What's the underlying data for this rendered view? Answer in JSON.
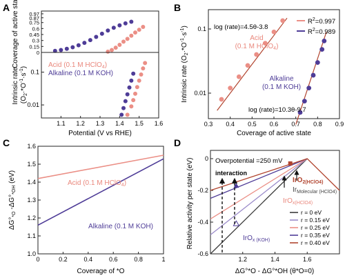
{
  "panel_letters": [
    "A",
    "B",
    "C",
    "D"
  ],
  "colors": {
    "acid": "#eb8f86",
    "alkaline": "#4e3c97",
    "acid_text": "#e9877c",
    "alkaline_text": "#4e3c97",
    "fit_line": "#b1442e",
    "volcano": "#b1442e"
  },
  "chart_data": [
    {
      "id": "A_top",
      "type": "scatter",
      "ylabel": "Coverage of active state",
      "xlim": [
        1.0,
        1.6
      ],
      "ylim": [
        0.0,
        0.97
      ],
      "yticks": [
        0.97,
        0.87,
        0.75,
        0.6,
        0.45,
        0.3,
        0.15,
        0
      ],
      "ytick_labels": [
        "0.97",
        "0.87",
        "0.75",
        "0.6",
        "0.45",
        "0.3",
        "0.15",
        "0"
      ],
      "series": [
        {
          "name": "Acid (0.1 M HClO4)",
          "color": "#eb8f86",
          "x": [
            1.34,
            1.36,
            1.38,
            1.4,
            1.42,
            1.44,
            1.46,
            1.48,
            1.5,
            1.52
          ],
          "y": [
            0.02,
            0.06,
            0.12,
            0.19,
            0.27,
            0.34,
            0.42,
            0.5,
            0.57,
            0.64
          ]
        },
        {
          "name": "Alkaline (0.1 M KOH)",
          "color": "#4e3c97",
          "x": [
            1.07,
            1.1,
            1.13,
            1.16,
            1.19,
            1.22,
            1.25,
            1.28,
            1.31,
            1.34,
            1.37,
            1.4,
            1.43,
            1.46
          ],
          "y": [
            0.04,
            0.06,
            0.09,
            0.13,
            0.18,
            0.24,
            0.31,
            0.39,
            0.47,
            0.55,
            0.62,
            0.68,
            0.73,
            0.77
          ]
        }
      ]
    },
    {
      "id": "A_bottom",
      "type": "scatter",
      "xlabel": "Potential (V vs RHE)",
      "ylabel": "Intrinsic rate (O2·*O-1·s-1)",
      "ylabel_main": "Intrinsic rate",
      "ylabel_units": "(O",
      "ylabel_sub": "2",
      "ylabel_sep": "·*O",
      "ylabel_sup1": "-1",
      "ylabel_s": "·s",
      "ylabel_sup2": "-1",
      "ylabel_close": ")",
      "xlim": [
        1.0,
        1.6
      ],
      "ylim_log": [
        0.004,
        0.4
      ],
      "yticks": [
        0.1,
        0.01
      ],
      "ytick_labels": [
        "0.1",
        "0.01"
      ],
      "xticks": [
        1.1,
        1.2,
        1.3,
        1.4,
        1.5,
        1.6
      ],
      "xtick_labels": [
        "1.1",
        "1.2",
        "1.3",
        "1.4",
        "1.5",
        "1.6"
      ],
      "legend": [
        {
          "label": "Acid (0.1 M HClO",
          "sub": "4",
          "close": ")",
          "color": "#e9877c"
        },
        {
          "label": "Alkaline (0.1 M KOH)",
          "color": "#4e3c97"
        }
      ],
      "series": [
        {
          "name": "Acid (0.1 M HClO4)",
          "color": "#eb8f86",
          "x": [
            1.44,
            1.46,
            1.47,
            1.48,
            1.49,
            1.5,
            1.51,
            1.52,
            1.53
          ],
          "y": [
            0.005,
            0.009,
            0.014,
            0.022,
            0.035,
            0.055,
            0.085,
            0.13,
            0.19
          ]
        },
        {
          "name": "Alkaline (0.1 M KOH)",
          "color": "#4e3c97",
          "x": [
            1.41,
            1.42,
            1.43,
            1.44,
            1.45,
            1.46,
            1.47
          ],
          "y": [
            0.005,
            0.008,
            0.013,
            0.021,
            0.034,
            0.055,
            0.09
          ]
        }
      ]
    },
    {
      "id": "B",
      "type": "scatter",
      "xlabel": "Coverage of active state",
      "ylabel": "Intrinsic rate (O2·*O-1·s-1)",
      "ylabel_main": "Intrinsic rate",
      "ylabel_units": "(O",
      "ylabel_sub": "2",
      "ylabel_sep": "·*O",
      "ylabel_sup1": "-1",
      "ylabel_s": "·s",
      "ylabel_sup2": "-1",
      "ylabel_close": ")",
      "xlim": [
        0.3,
        0.9
      ],
      "ylim_log": [
        0.004,
        0.2
      ],
      "xticks": [
        0.3,
        0.4,
        0.5,
        0.6,
        0.7,
        0.8,
        0.9
      ],
      "xtick_labels": [
        "0.3",
        "0.4",
        "0.5",
        "0.6",
        "0.7",
        "0.8",
        "0.9"
      ],
      "yticks": [
        0.1,
        0.01
      ],
      "ytick_labels": [
        "0.1",
        "0.01"
      ],
      "legend": [
        {
          "label": "R",
          "sup": "2",
          "value": "=0.997",
          "color": "#eb8f86"
        },
        {
          "label": "R",
          "sup": "2",
          "value": "=0.989",
          "color": "#4e3c97"
        }
      ],
      "annotations": {
        "acid_fit": "log (rate)=4.5θ-3.8",
        "alk_fit": "log (rate)=10.3θ-9.7",
        "acid_label": "Acid",
        "acid_label2": "(0.1 M HClO",
        "acid_label2_sub": "4",
        "acid_label2_close": ")",
        "alk_label": "Alkaline",
        "alk_label2": "(0.1 M KOH)"
      },
      "series": [
        {
          "name": "Acid (0.1 M HClO4)",
          "color": "#eb8f86",
          "x": [
            0.36,
            0.4,
            0.44,
            0.48,
            0.52,
            0.56,
            0.6,
            0.64
          ],
          "y": [
            0.008,
            0.012,
            0.018,
            0.027,
            0.04,
            0.06,
            0.09,
            0.135
          ]
        },
        {
          "name": "Alkaline (0.1 M KOH)",
          "color": "#4e3c97",
          "x": [
            0.72,
            0.74,
            0.76,
            0.78,
            0.8,
            0.82,
            0.83
          ],
          "y": [
            0.005,
            0.0075,
            0.012,
            0.019,
            0.03,
            0.048,
            0.065
          ]
        }
      ],
      "fits": [
        {
          "slope": 4.5,
          "intercept": -3.8,
          "x": [
            0.34,
            0.66
          ]
        },
        {
          "slope": 10.3,
          "intercept": -9.7,
          "x": [
            0.7,
            0.84
          ]
        }
      ]
    },
    {
      "id": "C",
      "type": "line",
      "xlabel": "Coverage of *O",
      "ylabel": "ΔG°*O - ΔG°*OH (eV)",
      "ylabel_parts": [
        "ΔG°",
        "*O",
        " -ΔG°",
        "*OH",
        " (eV)"
      ],
      "xlim": [
        0,
        1
      ],
      "ylim": [
        1.0,
        1.6
      ],
      "xticks": [
        0,
        0.2,
        0.4,
        0.6,
        0.8,
        1
      ],
      "xtick_labels": [
        "0",
        "0.2",
        "0.4",
        "0.6",
        "0.8",
        "1"
      ],
      "yticks": [
        1.0,
        1.1,
        1.2,
        1.3,
        1.4,
        1.5,
        1.6
      ],
      "ytick_labels": [
        "1.0",
        "1.1",
        "1.2",
        "1.3",
        "1.4",
        "1.5",
        "1.6"
      ],
      "labels": {
        "acid": "Acid (0.1 M HClO",
        "acid_sub": "4",
        "acid_close": ")",
        "alk": "Alkaline (0.1 M KOH)"
      },
      "series": [
        {
          "name": "Acid (0.1 M HClO4)",
          "color": "#eb8f86",
          "x": [
            0,
            1
          ],
          "y": [
            1.42,
            1.55
          ]
        },
        {
          "name": "Alkaline (0.1 M KOH)",
          "color": "#4e3c97",
          "x": [
            0,
            1
          ],
          "y": [
            1.16,
            1.53
          ]
        }
      ]
    },
    {
      "id": "D",
      "type": "line",
      "xlabel": "ΔG°*O - ΔG°*OH (θ*O=0)",
      "ylabel": "Relative activity per state (eV)",
      "xlim": [
        1.0,
        1.8
      ],
      "ylim": [
        -0.6,
        0.0
      ],
      "xticks": [
        1.2,
        1.4,
        1.6
      ],
      "xtick_labels": [
        "1.2",
        "1.4",
        "1.6"
      ],
      "yticks": [
        0,
        -0.2,
        -0.4,
        -0.6
      ],
      "ytick_labels": [
        "0",
        "-0.2",
        "-0.4",
        "-0.6"
      ],
      "annotations": {
        "overpotential": "Overpotential =250 mV",
        "interaction": "interaction",
        "iro2_label": "IrO",
        "iro2_sub": "2(HClO4)",
        "ir_mol": "Ir",
        "ir_mol_sub": "Molecular (HClO4)",
        "iro_x_hclo4": "IrO",
        "iro_x_hclo4_sub": "x(HClO4)",
        "iro_x_koh": "IrO",
        "iro_x_koh_sub": "x (KOH)"
      },
      "legend": [
        {
          "label": "r = 0 eV",
          "color": "#3b3b3b"
        },
        {
          "label": "r = 0.15 eV",
          "color": "#9a8ac9"
        },
        {
          "label": "r = 0.25 eV",
          "color": "#eb8f86"
        },
        {
          "label": "r = 0.35 eV",
          "color": "#4e3c97"
        },
        {
          "label": "r = 0.40 eV",
          "color": "#b1442e"
        }
      ],
      "series": [
        {
          "name": "r = 0 eV",
          "color": "#3b3b3b",
          "x": [
            1.0,
            1.6
          ],
          "y": [
            -0.6,
            0.0
          ]
        },
        {
          "name": "r = 0.15 eV",
          "color": "#9a8ac9",
          "x": [
            1.0,
            1.6
          ],
          "y": [
            -0.48,
            0.0
          ]
        },
        {
          "name": "r = 0.25 eV",
          "color": "#eb8f86",
          "x": [
            1.0,
            1.6
          ],
          "y": [
            -0.38,
            0.0
          ]
        },
        {
          "name": "r = 0.35 eV",
          "color": "#4e3c97",
          "x": [
            1.0,
            1.6
          ],
          "y": [
            -0.25,
            0.0
          ]
        },
        {
          "name": "r = 0.40 eV",
          "color": "#b1442e",
          "x": [
            1.0,
            1.6,
            1.8
          ],
          "y": [
            -0.2,
            0.0,
            -0.2
          ]
        }
      ]
    }
  ]
}
